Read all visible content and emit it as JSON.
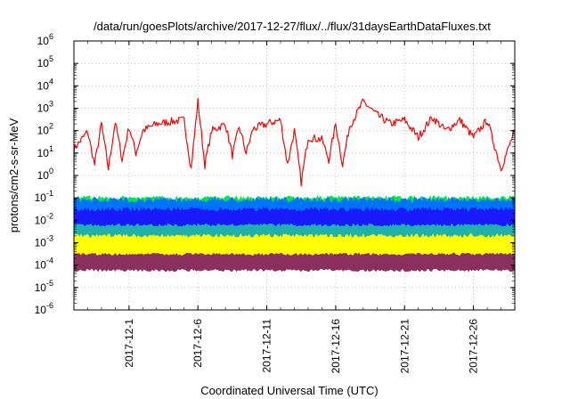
{
  "chart_data": {
    "type": "line",
    "title": "/data/run/goesPlots/archive/2017-12-27/flux/../flux/31daysEarthDataFluxes.txt",
    "xlabel": "Coordinated Universal Time (UTC)",
    "ylabel": "protons/cm2-s-sr-MeV",
    "x_scale": "time",
    "y_scale": "log",
    "xlim": [
      "2017-11-27",
      "2017-12-29"
    ],
    "ylim": [
      1e-06,
      1000000.0
    ],
    "grid": true,
    "legend": "none",
    "y_ticks": [
      {
        "base": "10",
        "exp": "-6",
        "value": 1e-06
      },
      {
        "base": "10",
        "exp": "-5",
        "value": 1e-05
      },
      {
        "base": "10",
        "exp": "-4",
        "value": 0.0001
      },
      {
        "base": "10",
        "exp": "-3",
        "value": 0.001
      },
      {
        "base": "10",
        "exp": "-2",
        "value": 0.01
      },
      {
        "base": "10",
        "exp": "-1",
        "value": 0.1
      },
      {
        "base": "10",
        "exp": "0",
        "value": 1
      },
      {
        "base": "10",
        "exp": "1",
        "value": 10
      },
      {
        "base": "10",
        "exp": "2",
        "value": 100
      },
      {
        "base": "10",
        "exp": "3",
        "value": 1000
      },
      {
        "base": "10",
        "exp": "4",
        "value": 10000
      },
      {
        "base": "10",
        "exp": "5",
        "value": 100000
      },
      {
        "base": "10",
        "exp": "6",
        "value": 1000000
      }
    ],
    "x_ticks": [
      {
        "label": "2017-12-1",
        "date": "2017-12-01"
      },
      {
        "label": "2017-12-6",
        "date": "2017-12-06"
      },
      {
        "label": "2017-12-11",
        "date": "2017-12-11"
      },
      {
        "label": "2017-12-16",
        "date": "2017-12-16"
      },
      {
        "label": "2017-12-21",
        "date": "2017-12-21"
      },
      {
        "label": "2017-12-26",
        "date": "2017-12-26"
      }
    ],
    "series": [
      {
        "color": "#ff0000",
        "style": "line",
        "points": [
          [
            "2017-11-27",
            15
          ],
          [
            "2017-11-28",
            90
          ],
          [
            "2017-11-28T12:00",
            3
          ],
          [
            "2017-11-29",
            200
          ],
          [
            "2017-11-29T12:00",
            2
          ],
          [
            "2017-11-30",
            250
          ],
          [
            "2017-11-30T12:00",
            5
          ],
          [
            "2017-12-01",
            150
          ],
          [
            "2017-12-01T12:00",
            10
          ],
          [
            "2017-12-02",
            100
          ],
          [
            "2017-12-03",
            200
          ],
          [
            "2017-12-04",
            250
          ],
          [
            "2017-12-05",
            300
          ],
          [
            "2017-12-05T12:00",
            2
          ],
          [
            "2017-12-06",
            2000
          ],
          [
            "2017-12-06T12:00",
            3
          ],
          [
            "2017-12-07",
            100
          ],
          [
            "2017-12-08",
            200
          ],
          [
            "2017-12-08T12:00",
            8
          ],
          [
            "2017-12-09",
            150
          ],
          [
            "2017-12-09T12:00",
            10
          ],
          [
            "2017-12-10",
            120
          ],
          [
            "2017-12-11",
            200
          ],
          [
            "2017-12-12",
            300
          ],
          [
            "2017-12-12T12:00",
            3
          ],
          [
            "2017-12-13",
            100
          ],
          [
            "2017-12-13T12:00",
            0.5
          ],
          [
            "2017-12-14",
            50
          ],
          [
            "2017-12-15",
            40
          ],
          [
            "2017-12-15T12:00",
            5
          ],
          [
            "2017-12-16",
            200
          ],
          [
            "2017-12-16T12:00",
            3
          ],
          [
            "2017-12-17",
            150
          ],
          [
            "2017-12-18",
            2000
          ],
          [
            "2017-12-19",
            500
          ],
          [
            "2017-12-20",
            200
          ],
          [
            "2017-12-21",
            300
          ],
          [
            "2017-12-22",
            50
          ],
          [
            "2017-12-23",
            400
          ],
          [
            "2017-12-24",
            100
          ],
          [
            "2017-12-25",
            300
          ],
          [
            "2017-12-26",
            50
          ],
          [
            "2017-12-27",
            300
          ],
          [
            "2017-12-28",
            2
          ],
          [
            "2017-12-29",
            100
          ]
        ]
      },
      {
        "color": "#00e64d",
        "style": "band",
        "low": 0.01,
        "high": 0.1,
        "from": "2017-11-27",
        "to": "2017-12-29"
      },
      {
        "color": "#0073ff",
        "style": "band",
        "low": 0.003,
        "high": 0.08,
        "from": "2017-11-27",
        "to": "2017-12-29"
      },
      {
        "color": "#1a1aff",
        "style": "band",
        "low": 0.002,
        "high": 0.03,
        "from": "2017-11-27",
        "to": "2017-12-29"
      },
      {
        "color": "#20b2aa",
        "style": "band",
        "low": 0.001,
        "high": 0.006,
        "from": "2017-11-27",
        "to": "2017-12-29"
      },
      {
        "color": "#ffff00",
        "style": "band",
        "low": 0.0002,
        "high": 0.002,
        "from": "2017-11-27",
        "to": "2017-12-29"
      },
      {
        "color": "#8b2f5f",
        "style": "band",
        "low": 6e-05,
        "high": 0.0003,
        "from": "2017-11-27",
        "to": "2017-12-29"
      }
    ]
  }
}
